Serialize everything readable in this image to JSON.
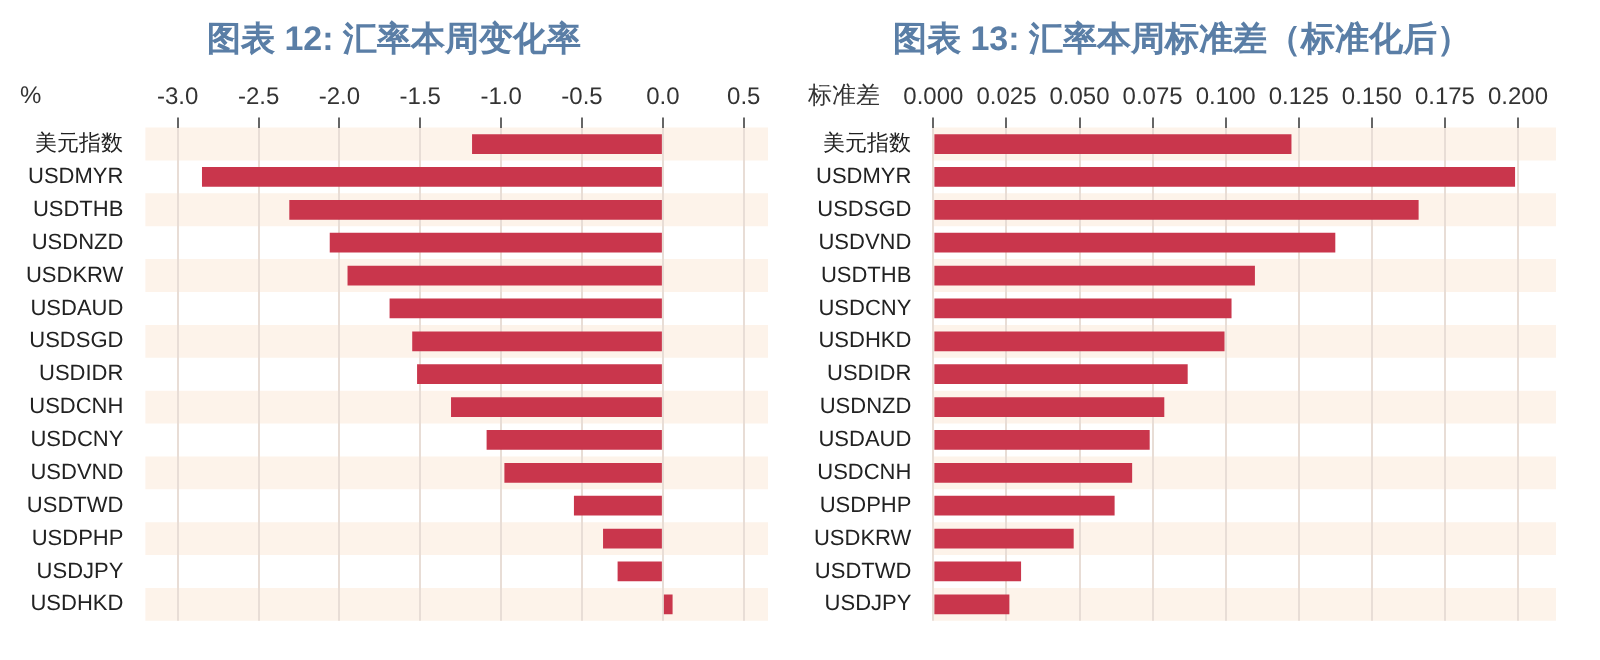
{
  "chart_data": [
    {
      "type": "bar",
      "orientation": "horizontal",
      "title": "图表 12: 汇率本周变化率",
      "xlabel": "%",
      "categories": [
        "美元指数",
        "USDMYR",
        "USDTHB",
        "USDNZD",
        "USDKRW",
        "USDAUD",
        "USDSGD",
        "USDIDR",
        "USDCNH",
        "USDCNY",
        "USDVND",
        "USDTWD",
        "USDPHP",
        "USDJPY",
        "USDHKD"
      ],
      "values": [
        -1.18,
        -2.85,
        -2.31,
        -2.06,
        -1.95,
        -1.69,
        -1.55,
        -1.52,
        -1.31,
        -1.09,
        -0.98,
        -0.55,
        -0.37,
        -0.28,
        0.06
      ],
      "color": "#c9364c",
      "xlim": [
        -3.2,
        0.65
      ],
      "xticks": [
        {
          "value": -3,
          "label": "-3.0"
        },
        {
          "value": -2.5,
          "label": "-2.5"
        },
        {
          "value": -2,
          "label": "-2.0"
        },
        {
          "value": -1.5,
          "label": "-1.5"
        },
        {
          "value": -1,
          "label": "-1.0"
        },
        {
          "value": -0.5,
          "label": "-0.5"
        },
        {
          "value": 0,
          "label": "0.0"
        },
        {
          "value": 0.5,
          "label": "0.5"
        }
      ],
      "grid": "x"
    },
    {
      "type": "bar",
      "orientation": "horizontal",
      "title": "图表 13: 汇率本周标准差（标准化后）",
      "xlabel": "标准差",
      "categories": [
        "美元指数",
        "USDMYR",
        "USDSGD",
        "USDVND",
        "USDTHB",
        "USDCNY",
        "USDHKD",
        "USDIDR",
        "USDNZD",
        "USDAUD",
        "USDCNH",
        "USDPHP",
        "USDKRW",
        "USDTWD",
        "USDJPY"
      ],
      "values": [
        0.1225,
        0.199,
        0.166,
        0.1375,
        0.11,
        0.102,
        0.0996,
        0.087,
        0.079,
        0.074,
        0.068,
        0.062,
        0.048,
        0.03,
        0.026
      ],
      "color": "#c9364c",
      "xlim": [
        0,
        0.213
      ],
      "xticks": [
        {
          "value": 0,
          "label": "0.000"
        },
        {
          "value": 0.025,
          "label": "0.025"
        },
        {
          "value": 0.05,
          "label": "0.050"
        },
        {
          "value": 0.075,
          "label": "0.075"
        },
        {
          "value": 0.1,
          "label": "0.100"
        },
        {
          "value": 0.125,
          "label": "0.125"
        },
        {
          "value": 0.15,
          "label": "0.150"
        },
        {
          "value": 0.175,
          "label": "0.175"
        },
        {
          "value": 0.2,
          "label": "0.200"
        }
      ],
      "grid": "x"
    }
  ]
}
